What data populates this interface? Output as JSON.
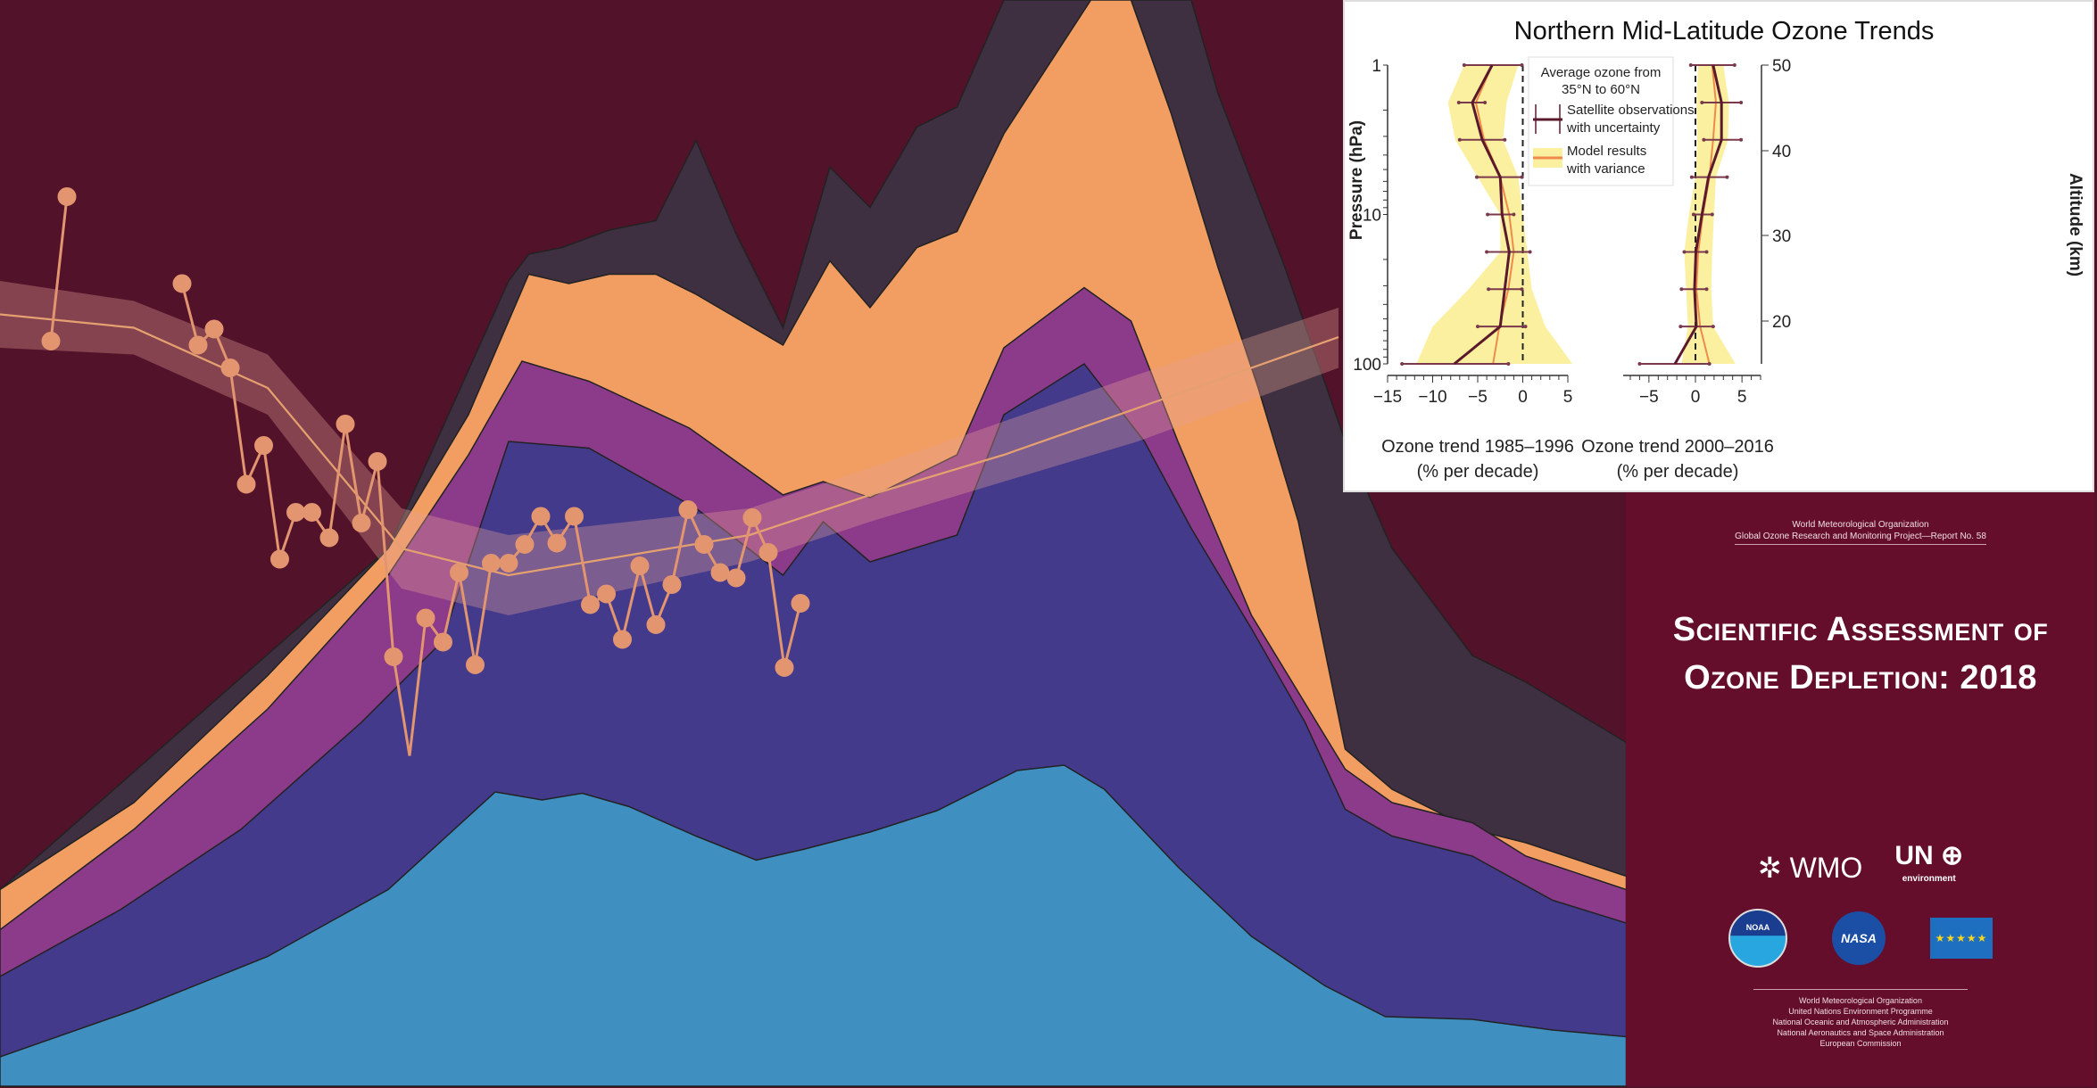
{
  "chart_data": {
    "type": "line",
    "title": "Northern Mid-Latitude Ozone Trends",
    "ylabel": "Pressure (hPa)",
    "ylabel_right": "Altitude (km)",
    "yscale": "log",
    "ylim": [
      100,
      1
    ],
    "y_ticks": [
      "1",
      "10",
      "100"
    ],
    "y_right_ticks": [
      "50",
      "40",
      "30",
      "20"
    ],
    "pressure_levels": [
      1,
      1.78,
      3.16,
      5.62,
      10,
      17.8,
      31.6,
      56.2,
      100
    ],
    "legend": {
      "title": "Average ozone from",
      "subtitle": "35°N to 60°N",
      "obs_label_1": "Satellite observations",
      "obs_label_2": "with uncertainty",
      "model_label_1": "Model results",
      "model_label_2": "with variance",
      "placement": "top-center"
    },
    "panels": [
      {
        "xlabel": "Ozone trend 1985–1996",
        "xunit": "(% per decade)",
        "xlim": [
          -15,
          5
        ],
        "x_ticks": [
          "−15",
          "−10",
          "−5",
          "0",
          "5"
        ],
        "obs": [
          -3.4,
          -5.6,
          -4.5,
          -2.5,
          -2.3,
          -1.5,
          -2.0,
          -2.5,
          -7.6
        ],
        "obs_lo": [
          -6.5,
          -7.1,
          -7.0,
          -5.1,
          -3.9,
          -4.0,
          -3.8,
          -5.0,
          -13.4
        ],
        "obs_hi": [
          -0.1,
          -4.2,
          -2.0,
          -0.1,
          -1.0,
          0.8,
          -0.1,
          0.3,
          -1.6
        ],
        "model": [
          -3.4,
          -5.2,
          -4.3,
          -2.5,
          -1.5,
          -1.0,
          -1.6,
          -2.6,
          -3.3
        ],
        "model_lo": [
          -6.5,
          -8.3,
          -7.5,
          -5.0,
          -2.5,
          -2.5,
          -6.0,
          -10.0,
          -11.8
        ],
        "model_hi": [
          -0.5,
          -1.8,
          -2.2,
          -0.5,
          0.0,
          0.5,
          1.0,
          2.5,
          5.5
        ]
      },
      {
        "xlabel": "Ozone trend 2000–2016",
        "xunit": "(% per decade)",
        "xlim": [
          -7,
          7
        ],
        "x_ticks": [
          "−5",
          "0",
          "5"
        ],
        "obs": [
          1.9,
          2.8,
          2.8,
          1.4,
          0.7,
          0.05,
          -0.1,
          0.1,
          -2.2
        ],
        "obs_lo": [
          -0.5,
          0.7,
          0.9,
          -0.4,
          -0.2,
          -1.2,
          -1.5,
          -1.6,
          -6.0
        ],
        "obs_hi": [
          4.2,
          4.9,
          4.9,
          3.4,
          1.8,
          1.2,
          1.2,
          1.9,
          1.5
        ],
        "model": [
          1.8,
          2.2,
          1.9,
          1.5,
          0.8,
          0.3,
          0.1,
          0.5,
          1.5
        ],
        "model_lo": [
          0.3,
          0.1,
          0.2,
          0.0,
          -0.7,
          -1.2,
          -1.0,
          -0.8,
          -1.5
        ],
        "model_hi": [
          3.0,
          3.6,
          3.5,
          2.2,
          2.0,
          1.8,
          1.7,
          1.9,
          4.3
        ]
      }
    ]
  },
  "colors": {
    "obs": "#5a1a2c",
    "model": "#f08a4b",
    "band": "#fbf0a0"
  },
  "cover": {
    "publisher_1": "World Meteorological Organization",
    "publisher_2": "Global Ozone Research and Monitoring Project—Report No. 58",
    "title_1": "Scientific Assessment of",
    "title_2": "Ozone Depletion: 2018",
    "logo_wmo": "WMO",
    "logo_un": "UN",
    "logo_un_sub": "environment",
    "logo_noaa": "NOAA",
    "logo_nasa": "NASA",
    "orgs": [
      "World Meteorological Organization",
      "United Nations Environment Programme",
      "National Oceanic and Atmospheric Administration",
      "National Aeronautics and Space Administration",
      "European Commission"
    ]
  }
}
